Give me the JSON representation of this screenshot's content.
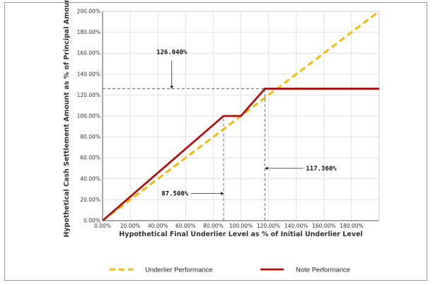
{
  "chart_data": {
    "type": "line",
    "xlabel": "Hypothetical Final Underlier Level as % of Initial Underlier Level",
    "ylabel": "Hypothetical Cash Settlement Amount as % of Principal Amount",
    "xlim": [
      0,
      200
    ],
    "ylim": [
      0,
      200
    ],
    "x_ticks": [
      0,
      20,
      40,
      60,
      80,
      100,
      120,
      140,
      160,
      180
    ],
    "x_tick_labels": [
      "0.00%",
      "20.00%",
      "40.00%",
      "60.00%",
      "80.00%",
      "100.00%",
      "120.00%",
      "140.00%",
      "160.00%",
      "180.00%"
    ],
    "y_ticks": [
      0,
      20,
      40,
      60,
      80,
      100,
      120,
      140,
      160,
      180,
      200
    ],
    "y_tick_labels": [
      "0.00%",
      "20.00%",
      "40.00%",
      "60.00%",
      "80.00%",
      "100.00%",
      "120.00%",
      "140.00%",
      "160.00%",
      "180.00%",
      "200.00%"
    ],
    "grid": true,
    "legend_position": "bottom",
    "series": [
      {
        "name": "Underlier Performance",
        "style": "dashed",
        "color": "#f5b800",
        "points": [
          [
            0,
            0
          ],
          [
            200,
            200
          ]
        ]
      },
      {
        "name": "Note Performance",
        "style": "solid",
        "color": "#b01010",
        "points": [
          [
            0,
            0
          ],
          [
            87.5,
            100
          ],
          [
            100,
            100
          ],
          [
            117.36,
            126.04
          ],
          [
            200,
            126.04
          ]
        ]
      }
    ],
    "annotations": [
      {
        "text": "126.040%",
        "target": [
          50,
          126.04
        ],
        "label_at": [
          50,
          157
        ]
      },
      {
        "text": "117.360%",
        "target": [
          117.36,
          50
        ],
        "label_at": [
          147,
          50
        ]
      },
      {
        "text": "87.500%",
        "target": [
          87.5,
          26
        ],
        "label_at": [
          62,
          26
        ]
      }
    ],
    "reference_lines": [
      {
        "orientation": "horizontal",
        "value": 126.04,
        "from": 0,
        "to": 117.36
      },
      {
        "orientation": "vertical",
        "value": 87.5,
        "from": 0,
        "to": 100
      },
      {
        "orientation": "vertical",
        "value": 117.36,
        "from": 0,
        "to": 126.04
      }
    ]
  }
}
